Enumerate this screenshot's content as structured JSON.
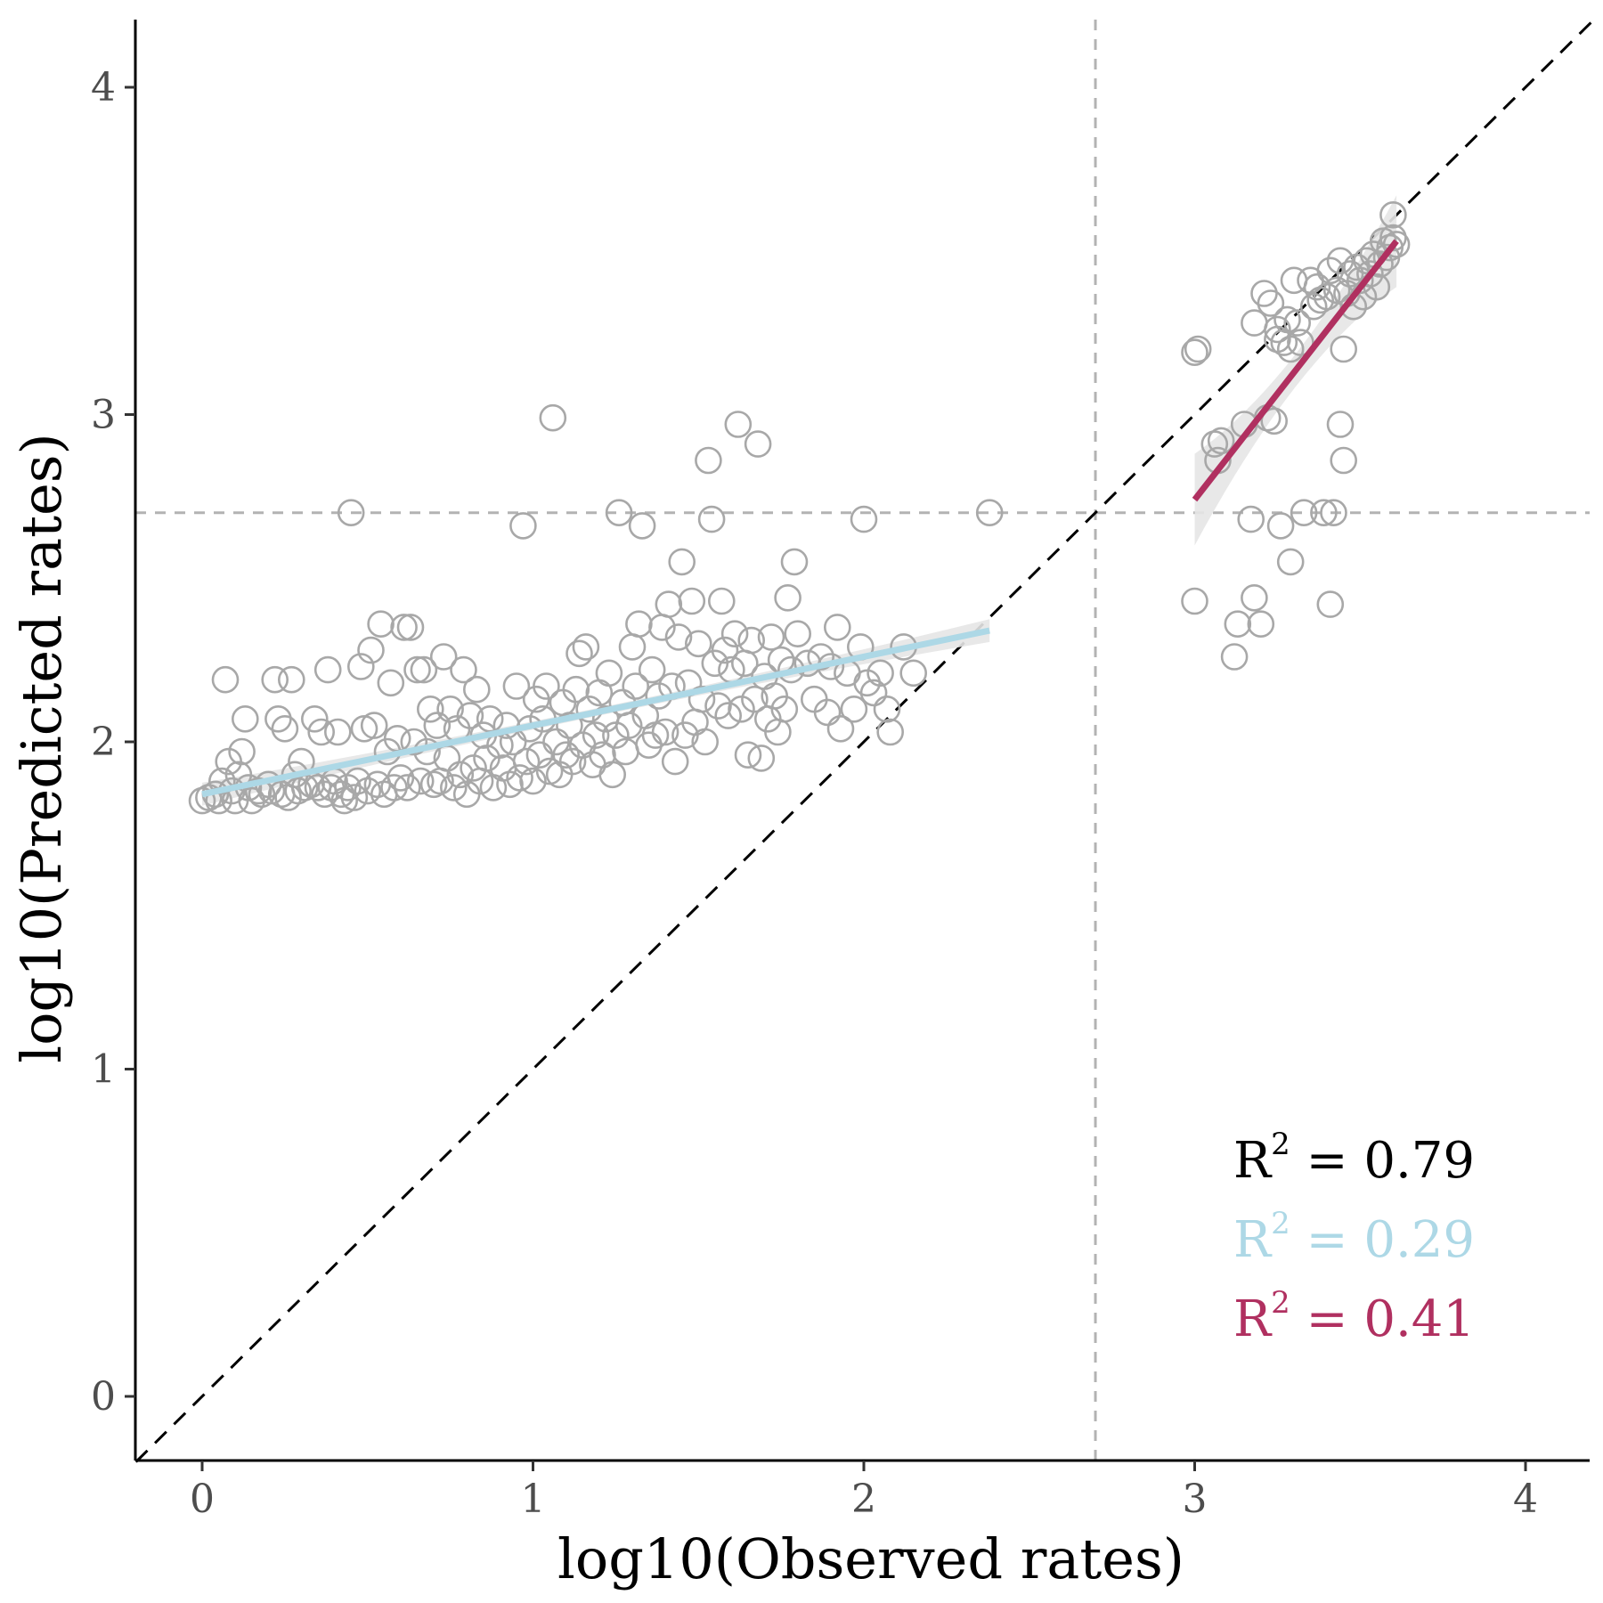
{
  "chart_data": {
    "type": "scatter",
    "xlabel": "log10(Observed rates)",
    "ylabel": "log10(Predicted rates)",
    "xlim": [
      -0.2,
      4.2
    ],
    "ylim": [
      -0.2,
      4.2
    ],
    "xticks": [
      "0",
      "1",
      "2",
      "3",
      "4"
    ],
    "yticks": [
      "0",
      "1",
      "2",
      "3",
      "4"
    ],
    "grid": false,
    "reference_lines": {
      "identity": {
        "style": "dashed",
        "color": "#000000"
      },
      "vertical_threshold_x": 2.7,
      "horizontal_threshold_y": 2.7,
      "threshold_color": "#b3b3b3"
    },
    "marker": {
      "shape": "open-circle",
      "color": "#a8a8a8"
    },
    "low_points": [
      [
        0.0,
        1.82
      ],
      [
        0.02,
        1.83
      ],
      [
        0.04,
        1.84
      ],
      [
        0.05,
        1.82
      ],
      [
        0.06,
        1.88
      ],
      [
        0.07,
        2.19
      ],
      [
        0.08,
        1.94
      ],
      [
        0.09,
        1.85
      ],
      [
        0.1,
        1.82
      ],
      [
        0.11,
        1.9
      ],
      [
        0.12,
        1.97
      ],
      [
        0.13,
        2.07
      ],
      [
        0.14,
        1.86
      ],
      [
        0.15,
        1.82
      ],
      [
        0.17,
        1.85
      ],
      [
        0.18,
        1.84
      ],
      [
        0.2,
        1.87
      ],
      [
        0.21,
        1.85
      ],
      [
        0.22,
        2.19
      ],
      [
        0.23,
        2.07
      ],
      [
        0.24,
        1.84
      ],
      [
        0.25,
        2.04
      ],
      [
        0.26,
        1.83
      ],
      [
        0.27,
        2.19
      ],
      [
        0.28,
        1.9
      ],
      [
        0.29,
        1.85
      ],
      [
        0.3,
        1.94
      ],
      [
        0.31,
        1.86
      ],
      [
        0.33,
        1.87
      ],
      [
        0.34,
        2.07
      ],
      [
        0.35,
        1.86
      ],
      [
        0.36,
        2.03
      ],
      [
        0.37,
        1.84
      ],
      [
        0.38,
        2.22
      ],
      [
        0.39,
        1.86
      ],
      [
        0.4,
        1.88
      ],
      [
        0.41,
        2.03
      ],
      [
        0.42,
        1.84
      ],
      [
        0.43,
        1.82
      ],
      [
        0.44,
        1.86
      ],
      [
        0.45,
        2.7
      ],
      [
        0.46,
        1.83
      ],
      [
        0.47,
        1.88
      ],
      [
        0.48,
        2.23
      ],
      [
        0.49,
        2.04
      ],
      [
        0.5,
        1.85
      ],
      [
        0.51,
        2.28
      ],
      [
        0.52,
        2.05
      ],
      [
        0.53,
        1.87
      ],
      [
        0.54,
        2.36
      ],
      [
        0.55,
        1.84
      ],
      [
        0.56,
        1.97
      ],
      [
        0.57,
        2.18
      ],
      [
        0.58,
        1.86
      ],
      [
        0.59,
        2.01
      ],
      [
        0.6,
        1.89
      ],
      [
        0.61,
        2.35
      ],
      [
        0.62,
        1.86
      ],
      [
        0.63,
        2.35
      ],
      [
        0.64,
        2.0
      ],
      [
        0.65,
        2.22
      ],
      [
        0.66,
        1.88
      ],
      [
        0.67,
        2.22
      ],
      [
        0.68,
        1.97
      ],
      [
        0.69,
        2.1
      ],
      [
        0.7,
        1.87
      ],
      [
        0.71,
        2.05
      ],
      [
        0.72,
        1.88
      ],
      [
        0.73,
        2.26
      ],
      [
        0.74,
        1.95
      ],
      [
        0.75,
        2.1
      ],
      [
        0.76,
        1.86
      ],
      [
        0.77,
        2.04
      ],
      [
        0.78,
        1.9
      ],
      [
        0.79,
        2.22
      ],
      [
        0.8,
        1.84
      ],
      [
        0.81,
        2.08
      ],
      [
        0.82,
        1.92
      ],
      [
        0.83,
        2.16
      ],
      [
        0.84,
        1.88
      ],
      [
        0.85,
        2.02
      ],
      [
        0.86,
        1.95
      ],
      [
        0.87,
        2.07
      ],
      [
        0.88,
        1.86
      ],
      [
        0.9,
        1.99
      ],
      [
        0.91,
        1.92
      ],
      [
        0.92,
        2.05
      ],
      [
        0.93,
        1.87
      ],
      [
        0.94,
        2.0
      ],
      [
        0.95,
        2.17
      ],
      [
        0.96,
        1.89
      ],
      [
        0.97,
        2.66
      ],
      [
        0.98,
        1.94
      ],
      [
        0.99,
        2.04
      ],
      [
        1.0,
        1.88
      ],
      [
        1.01,
        2.13
      ],
      [
        1.02,
        1.96
      ],
      [
        1.03,
        2.07
      ],
      [
        1.04,
        2.17
      ],
      [
        1.05,
        1.91
      ],
      [
        1.06,
        2.99
      ],
      [
        1.07,
        2.0
      ],
      [
        1.08,
        1.9
      ],
      [
        1.09,
        2.12
      ],
      [
        1.1,
        1.96
      ],
      [
        1.11,
        2.05
      ],
      [
        1.12,
        1.94
      ],
      [
        1.13,
        2.16
      ],
      [
        1.14,
        2.27
      ],
      [
        1.15,
        1.99
      ],
      [
        1.16,
        2.29
      ],
      [
        1.17,
        2.1
      ],
      [
        1.18,
        1.93
      ],
      [
        1.19,
        2.02
      ],
      [
        1.2,
        2.15
      ],
      [
        1.21,
        1.96
      ],
      [
        1.22,
        2.07
      ],
      [
        1.23,
        2.21
      ],
      [
        1.24,
        1.9
      ],
      [
        1.25,
        2.02
      ],
      [
        1.26,
        2.7
      ],
      [
        1.27,
        2.12
      ],
      [
        1.28,
        1.97
      ],
      [
        1.29,
        2.05
      ],
      [
        1.3,
        2.29
      ],
      [
        1.31,
        2.17
      ],
      [
        1.32,
        2.36
      ],
      [
        1.33,
        2.66
      ],
      [
        1.34,
        2.08
      ],
      [
        1.35,
        1.99
      ],
      [
        1.36,
        2.22
      ],
      [
        1.37,
        2.02
      ],
      [
        1.38,
        2.14
      ],
      [
        1.39,
        2.35
      ],
      [
        1.4,
        2.03
      ],
      [
        1.41,
        2.42
      ],
      [
        1.42,
        2.17
      ],
      [
        1.43,
        1.94
      ],
      [
        1.44,
        2.32
      ],
      [
        1.45,
        2.55
      ],
      [
        1.46,
        2.02
      ],
      [
        1.47,
        2.18
      ],
      [
        1.48,
        2.43
      ],
      [
        1.49,
        2.06
      ],
      [
        1.5,
        2.3
      ],
      [
        1.51,
        2.13
      ],
      [
        1.52,
        2.0
      ],
      [
        1.53,
        2.86
      ],
      [
        1.54,
        2.68
      ],
      [
        1.55,
        2.24
      ],
      [
        1.56,
        2.11
      ],
      [
        1.57,
        2.43
      ],
      [
        1.58,
        2.28
      ],
      [
        1.59,
        2.08
      ],
      [
        1.6,
        2.22
      ],
      [
        1.61,
        2.33
      ],
      [
        1.62,
        2.97
      ],
      [
        1.63,
        2.1
      ],
      [
        1.64,
        2.24
      ],
      [
        1.65,
        1.96
      ],
      [
        1.66,
        2.31
      ],
      [
        1.67,
        2.13
      ],
      [
        1.68,
        2.91
      ],
      [
        1.69,
        1.95
      ],
      [
        1.7,
        2.2
      ],
      [
        1.71,
        2.07
      ],
      [
        1.72,
        2.32
      ],
      [
        1.73,
        2.14
      ],
      [
        1.74,
        2.03
      ],
      [
        1.75,
        2.25
      ],
      [
        1.76,
        2.1
      ],
      [
        1.77,
        2.44
      ],
      [
        1.78,
        2.22
      ],
      [
        1.79,
        2.55
      ],
      [
        1.8,
        2.33
      ],
      [
        1.83,
        2.24
      ],
      [
        1.85,
        2.13
      ],
      [
        1.87,
        2.26
      ],
      [
        1.89,
        2.09
      ],
      [
        1.9,
        2.23
      ],
      [
        1.92,
        2.35
      ],
      [
        1.93,
        2.04
      ],
      [
        1.95,
        2.21
      ],
      [
        1.97,
        2.1
      ],
      [
        1.99,
        2.29
      ],
      [
        2.0,
        2.68
      ],
      [
        2.01,
        2.18
      ],
      [
        2.03,
        2.15
      ],
      [
        2.05,
        2.21
      ],
      [
        2.07,
        2.1
      ],
      [
        2.08,
        2.03
      ],
      [
        2.12,
        2.29
      ],
      [
        2.15,
        2.21
      ],
      [
        2.38,
        2.7
      ]
    ],
    "high_points": [
      [
        3.0,
        2.43
      ],
      [
        3.0,
        3.19
      ],
      [
        3.01,
        3.2
      ],
      [
        3.06,
        2.91
      ],
      [
        3.07,
        2.86
      ],
      [
        3.08,
        2.92
      ],
      [
        3.12,
        2.26
      ],
      [
        3.13,
        2.36
      ],
      [
        3.15,
        2.97
      ],
      [
        3.17,
        2.68
      ],
      [
        3.18,
        2.44
      ],
      [
        3.18,
        3.28
      ],
      [
        3.2,
        2.36
      ],
      [
        3.21,
        3.37
      ],
      [
        3.22,
        2.99
      ],
      [
        3.23,
        3.34
      ],
      [
        3.24,
        2.98
      ],
      [
        3.25,
        3.23
      ],
      [
        3.25,
        3.26
      ],
      [
        3.26,
        2.66
      ],
      [
        3.27,
        3.22
      ],
      [
        3.28,
        3.29
      ],
      [
        3.29,
        2.55
      ],
      [
        3.29,
        3.2
      ],
      [
        3.3,
        3.41
      ],
      [
        3.31,
        3.28
      ],
      [
        3.32,
        3.22
      ],
      [
        3.33,
        2.7
      ],
      [
        3.35,
        3.41
      ],
      [
        3.36,
        3.33
      ],
      [
        3.37,
        3.39
      ],
      [
        3.38,
        3.35
      ],
      [
        3.39,
        2.7
      ],
      [
        3.4,
        3.36
      ],
      [
        3.41,
        2.42
      ],
      [
        3.41,
        3.44
      ],
      [
        3.42,
        2.7
      ],
      [
        3.43,
        3.38
      ],
      [
        3.44,
        3.47
      ],
      [
        3.44,
        2.97
      ],
      [
        3.45,
        2.86
      ],
      [
        3.45,
        3.2
      ],
      [
        3.46,
        3.37
      ],
      [
        3.47,
        3.43
      ],
      [
        3.48,
        3.33
      ],
      [
        3.49,
        3.45
      ],
      [
        3.5,
        3.41
      ],
      [
        3.51,
        3.36
      ],
      [
        3.52,
        3.47
      ],
      [
        3.53,
        3.43
      ],
      [
        3.54,
        3.49
      ],
      [
        3.55,
        3.39
      ],
      [
        3.56,
        3.46
      ],
      [
        3.57,
        3.53
      ],
      [
        3.58,
        3.48
      ],
      [
        3.59,
        3.51
      ],
      [
        3.6,
        3.54
      ],
      [
        3.6,
        3.61
      ],
      [
        3.61,
        3.52
      ]
    ],
    "series": [
      {
        "fit": "linear",
        "color": "#add8e6",
        "x": [
          0.0,
          2.38
        ],
        "y": [
          1.84,
          2.34
        ]
      },
      {
        "fit": "linear",
        "color": "#b03060",
        "x": [
          3.0,
          3.61
        ],
        "y": [
          2.74,
          3.53
        ]
      }
    ],
    "annotations": [
      {
        "prefix": "R",
        "sup": "2",
        "rest": " = 0.79",
        "color": "#000000"
      },
      {
        "prefix": "R",
        "sup": "2",
        "rest": " = 0.29",
        "color": "#add8e6"
      },
      {
        "prefix": "R",
        "sup": "2",
        "rest": " = 0.41",
        "color": "#b03060"
      }
    ]
  }
}
